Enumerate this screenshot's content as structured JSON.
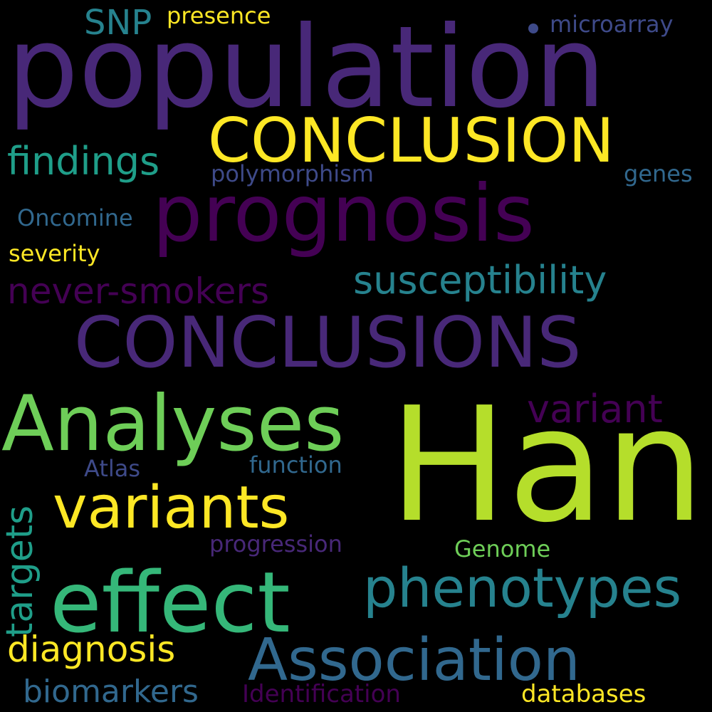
{
  "colors": {
    "background": "#000000",
    "dark_purple": "#440154",
    "purple": "#482878",
    "indigo": "#3e4a89",
    "blue": "#31688e",
    "teal_blue": "#26828e",
    "teal": "#1f9e89",
    "green_teal": "#35b779",
    "green": "#6ece58",
    "lime": "#b5de2b",
    "yellow": "#fde725"
  },
  "words": {
    "population": "population",
    "conclusion": "CONCLUSION",
    "prognosis": "prognosis",
    "conclusions": "CONCLUSIONS",
    "han": "Han",
    "analyses": "Analyses",
    "effect": "effect",
    "variants": "variants",
    "phenotypes": "phenotypes",
    "association": "Association",
    "susceptibility": "susceptibility",
    "never_smokers": "never-smokers",
    "findings": "findings",
    "variant": "variant",
    "targets": "targets",
    "diagnosis": "diagnosis",
    "biomarkers": "biomarkers",
    "snp": "SNP",
    "presence": "presence",
    "microarray": "microarray",
    "polymorphism": "polymorphism",
    "genes": "genes",
    "oncomine": "Oncomine",
    "severity": "severity",
    "atlas": "Atlas",
    "function": "function",
    "progression": "progression",
    "genome": "Genome",
    "identification": "Identification",
    "databases": "databases"
  }
}
